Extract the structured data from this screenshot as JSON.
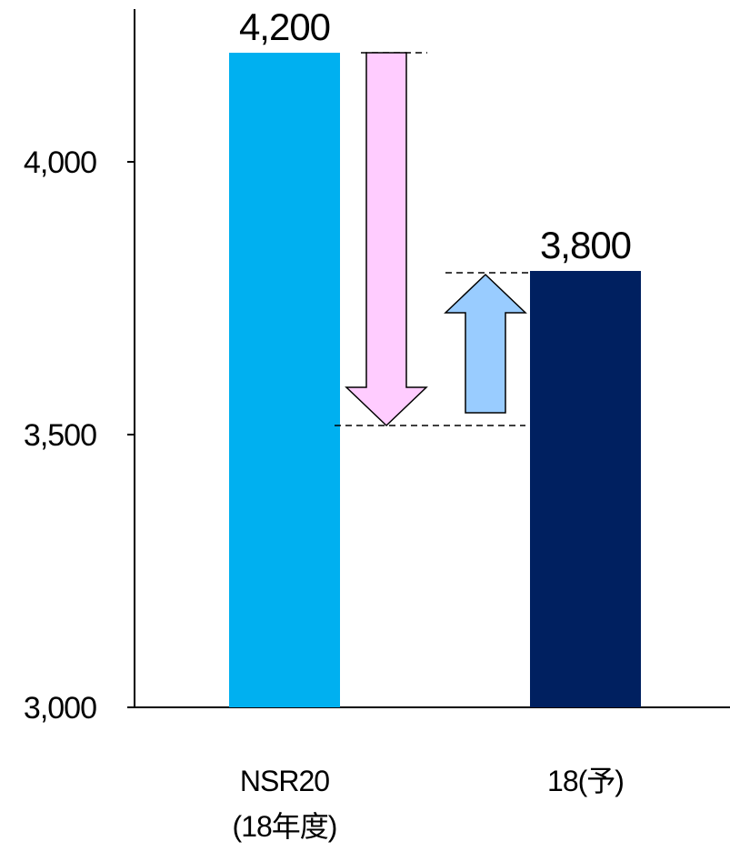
{
  "chart_data": {
    "type": "bar",
    "categories": [
      [
        "NSR20",
        "(18年度)"
      ],
      [
        "18(予)"
      ]
    ],
    "values": [
      4200,
      3800
    ],
    "value_labels": [
      "4,200",
      "3,800"
    ],
    "ylim": [
      3000,
      4300
    ],
    "yticks": [
      3000,
      3500,
      4000
    ],
    "ytick_labels": [
      "3,000",
      "3,500",
      "4,000"
    ],
    "title": "",
    "xlabel": "",
    "ylabel": "",
    "grid": false,
    "colors": [
      "#00b0f0",
      "#002060"
    ],
    "arrows": [
      {
        "direction": "down",
        "from": 4200,
        "to": 3530,
        "color": "#ffccff"
      },
      {
        "direction": "up",
        "from": 3540,
        "to": 3800,
        "color": "#99ccff"
      }
    ]
  }
}
